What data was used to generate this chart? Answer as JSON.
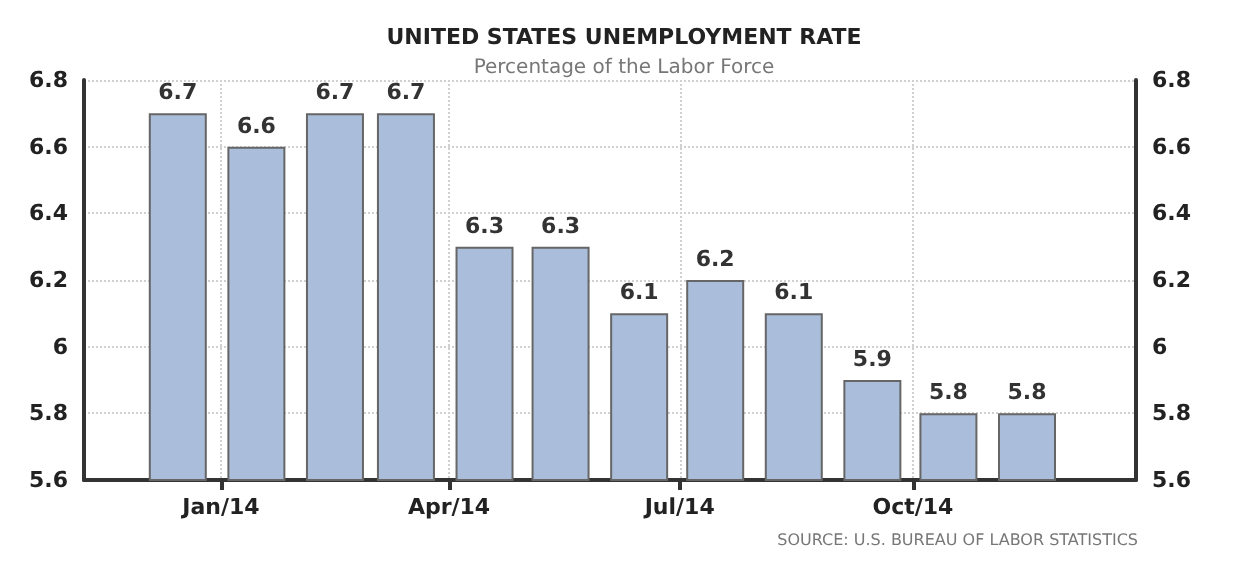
{
  "chart_data": {
    "type": "bar",
    "title": "UNITED STATES UNEMPLOYMENT RATE",
    "subtitle": "Percentage of the Labor Force",
    "x": [
      "2013-12-15",
      "2014-01-15",
      "2014-02-15",
      "2014-03-15",
      "2014-04-15",
      "2014-05-15",
      "2014-06-15",
      "2014-07-15",
      "2014-08-15",
      "2014-09-15",
      "2014-10-15",
      "2014-11-15"
    ],
    "values": [
      6.7,
      6.6,
      6.7,
      6.7,
      6.3,
      6.3,
      6.1,
      6.2,
      6.1,
      5.9,
      5.8,
      5.8
    ],
    "color": "#aabedb",
    "data_labels": true,
    "xlim": [
      "2013-11-08",
      "2014-12-28"
    ],
    "xticks": [
      {
        "value": "2014-01",
        "label": "Jan/14"
      },
      {
        "value": "2014-04",
        "label": "Apr/14"
      },
      {
        "value": "2014-07",
        "label": "Jul/14"
      },
      {
        "value": "2014-10",
        "label": "Oct/14"
      }
    ],
    "ylim": [
      5.6,
      6.8
    ],
    "yticks": [
      5.6,
      5.8,
      6,
      6.2,
      6.4,
      6.6,
      6.8
    ],
    "y2lim": [
      5.6,
      6.8
    ],
    "y2ticks": [
      5.6,
      5.8,
      6,
      6.2,
      6.4,
      6.6,
      6.8
    ],
    "grid": true,
    "annotations": [
      "SOURCE: U.S. BUREAU OF LABOR STATISTICS"
    ]
  }
}
